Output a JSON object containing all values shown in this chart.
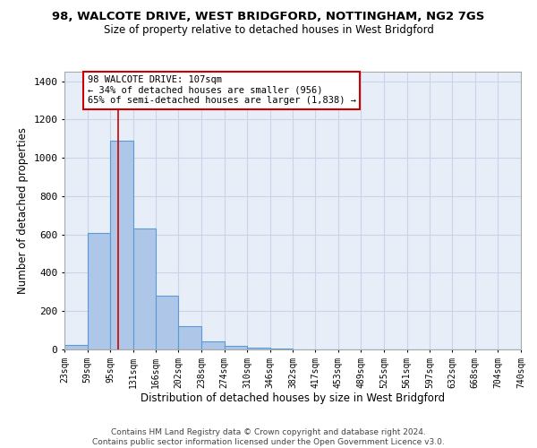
{
  "title": "98, WALCOTE DRIVE, WEST BRIDGFORD, NOTTINGHAM, NG2 7GS",
  "subtitle": "Size of property relative to detached houses in West Bridgford",
  "xlabel": "Distribution of detached houses by size in West Bridgford",
  "ylabel": "Number of detached properties",
  "bin_edges": [
    23,
    59,
    95,
    131,
    166,
    202,
    238,
    274,
    310,
    346,
    382,
    417,
    453,
    489,
    525,
    561,
    597,
    632,
    668,
    704,
    740
  ],
  "bar_heights": [
    25,
    610,
    1090,
    630,
    280,
    120,
    40,
    20,
    10,
    5,
    0,
    0,
    0,
    0,
    0,
    0,
    0,
    0,
    0,
    0
  ],
  "bar_color": "#aec6e8",
  "bar_edgecolor": "#5b9bd5",
  "grid_color": "#c8d4e8",
  "bg_color": "#e8eef8",
  "red_line_x": 107,
  "red_line_color": "#cc0000",
  "annotation_text": "98 WALCOTE DRIVE: 107sqm\n← 34% of detached houses are smaller (956)\n65% of semi-detached houses are larger (1,838) →",
  "annotation_box_color": "#ffffff",
  "annotation_box_edgecolor": "#cc0000",
  "ylim": [
    0,
    1450
  ],
  "yticks": [
    0,
    200,
    400,
    600,
    800,
    1000,
    1200,
    1400
  ],
  "footer_line1": "Contains HM Land Registry data © Crown copyright and database right 2024.",
  "footer_line2": "Contains public sector information licensed under the Open Government Licence v3.0."
}
